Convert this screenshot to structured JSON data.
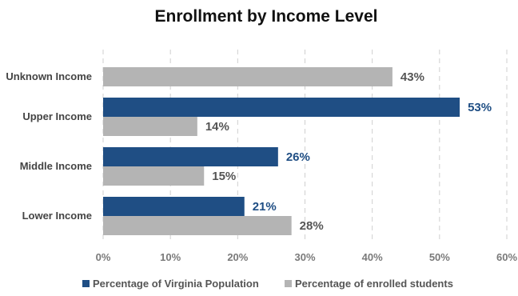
{
  "chart_data": {
    "type": "bar",
    "orientation": "horizontal",
    "title": "Enrollment by Income Level",
    "categories": [
      "Unknown Income",
      "Upper Income",
      "Middle Income",
      "Lower Income"
    ],
    "series": [
      {
        "name": "Percentage of Virginia Population",
        "color": "#1f4e84",
        "values": [
          null,
          53,
          26,
          21
        ]
      },
      {
        "name": "Percentage of enrolled students",
        "color": "#b4b4b4",
        "values": [
          43,
          14,
          15,
          28
        ]
      }
    ],
    "xticks": [
      "0%",
      "10%",
      "20%",
      "30%",
      "40%",
      "50%",
      "60%"
    ],
    "xlim": [
      0,
      60
    ],
    "grid": true,
    "legend_position": "bottom",
    "data_label_colors": [
      "#1f4e84",
      "#555555"
    ]
  }
}
